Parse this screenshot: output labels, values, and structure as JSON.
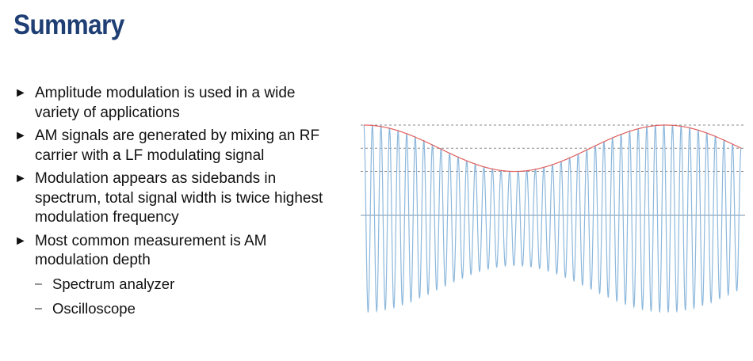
{
  "slide": {
    "title": "Summary"
  },
  "bullets": [
    {
      "marker": "►",
      "text": "Amplitude modulation is used in a wide variety of applications"
    },
    {
      "marker": "►",
      "text": "AM signals are generated by mixing an RF carrier with a LF modulating signal"
    },
    {
      "marker": "►",
      "text": "Modulation appears as sidebands in spectrum, total signal width is twice highest modulation frequency"
    },
    {
      "marker": "►",
      "text": "Most common measurement is AM modulation depth"
    }
  ],
  "sub_bullets": [
    {
      "marker": "–",
      "text": "Spectrum analyzer"
    },
    {
      "marker": "–",
      "text": "Oscilloscope"
    }
  ],
  "waveform": {
    "carrier_cycles": 44,
    "envelope_cycles": 1.25,
    "modulation_depth": 0.33,
    "colors": {
      "carrier": "#8db8dc",
      "envelope": "#e0605e",
      "reference": "#8a8a8a",
      "baseline": "#8fa6bc"
    }
  }
}
